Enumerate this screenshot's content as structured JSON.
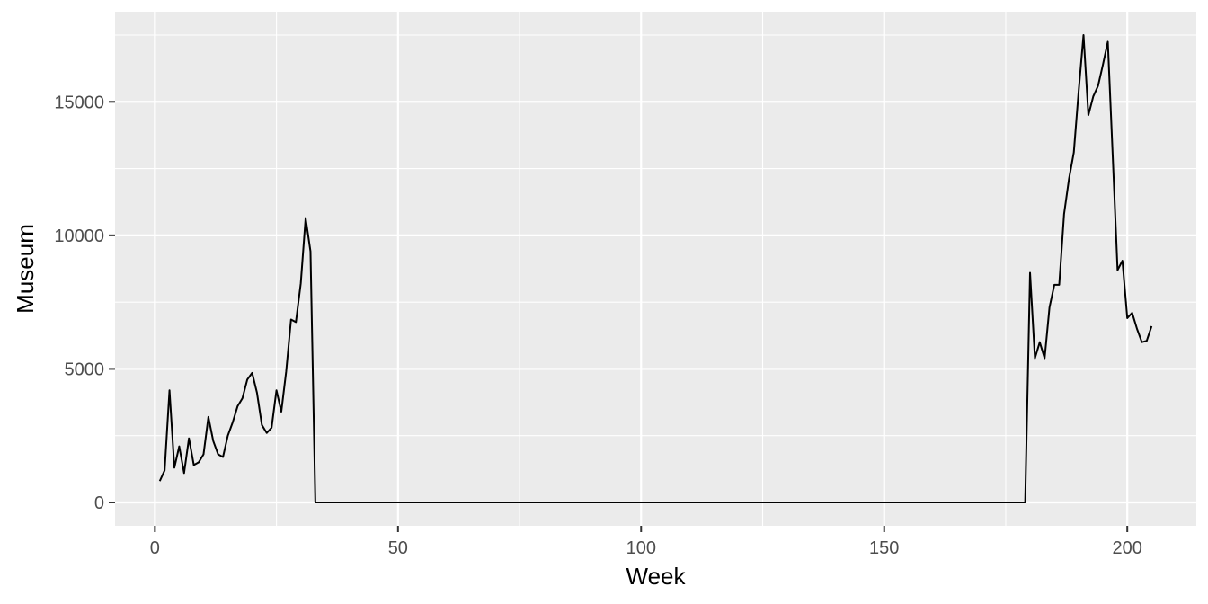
{
  "chart_data": {
    "type": "line",
    "title": "",
    "xlabel": "Week",
    "ylabel": "Museum",
    "xlim": [
      -8.2,
      214.2
    ],
    "ylim": [
      -875,
      18375
    ],
    "xticks": [
      0,
      50,
      100,
      150,
      200
    ],
    "xtick_labels": [
      "0",
      "50",
      "100",
      "150",
      "200"
    ],
    "xticks_minor": [
      25,
      75,
      125,
      175
    ],
    "yticks": [
      0,
      5000,
      10000,
      15000
    ],
    "ytick_labels": [
      "0",
      "5000",
      "10000",
      "15000"
    ],
    "yticks_minor": [
      2500,
      7500,
      12500,
      17500
    ],
    "grid": true,
    "legend": "none",
    "colors": {
      "panel": "#EBEBEB",
      "grid": "#FFFFFF",
      "line": "#000000",
      "tick_text": "#4D4D4D",
      "tick_mark": "#333333"
    },
    "series": [
      {
        "x": [
          1,
          2,
          3,
          4,
          5,
          6,
          7,
          8,
          9,
          10,
          11,
          12,
          13,
          14,
          15,
          16,
          17,
          18,
          19,
          20,
          21,
          22,
          23,
          24,
          25,
          26,
          27,
          28,
          29,
          30,
          31,
          32,
          33,
          179,
          180,
          181,
          182,
          183,
          184,
          185,
          186,
          187,
          188,
          189,
          190,
          191,
          192,
          193,
          194,
          195,
          196,
          197,
          198,
          199,
          200,
          201,
          202,
          203,
          204,
          205
        ],
        "y": [
          800,
          1200,
          4200,
          1300,
          2100,
          1100,
          2400,
          1400,
          1500,
          1800,
          3200,
          2300,
          1800,
          1700,
          2500,
          3000,
          3600,
          3900,
          4600,
          4850,
          4100,
          2900,
          2600,
          2800,
          4200,
          3400,
          4900,
          6850,
          6750,
          8200,
          10650,
          9400,
          0,
          0,
          8600,
          5400,
          6000,
          5400,
          7300,
          8150,
          8150,
          10800,
          12100,
          13100,
          15400,
          17500,
          14500,
          15200,
          15600,
          16400,
          17250,
          13000,
          8700,
          9050,
          6900,
          7100,
          6500,
          6000,
          6050,
          6600
        ]
      }
    ]
  }
}
